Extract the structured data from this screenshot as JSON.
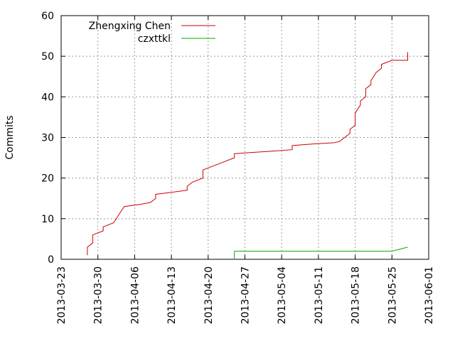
{
  "chart_data": {
    "type": "line",
    "xlabel": "",
    "ylabel": "Commits",
    "xlim": [
      "2013-03-23",
      "2013-06-01"
    ],
    "ylim": [
      0,
      60
    ],
    "x_ticks": [
      "2013-03-23",
      "2013-03-30",
      "2013-04-06",
      "2013-04-13",
      "2013-04-20",
      "2013-04-27",
      "2013-05-04",
      "2013-05-11",
      "2013-05-18",
      "2013-05-25",
      "2013-06-01"
    ],
    "y_ticks": [
      0,
      10,
      20,
      30,
      40,
      50,
      60
    ],
    "grid": true,
    "legend_position": "top-left",
    "series": [
      {
        "name": "Zhengxing Chen",
        "color": "#cc0000",
        "points": [
          [
            "2013-03-28",
            1
          ],
          [
            "2013-03-28",
            3
          ],
          [
            "2013-03-29",
            4
          ],
          [
            "2013-03-29",
            6
          ],
          [
            "2013-03-31",
            7
          ],
          [
            "2013-03-31",
            8
          ],
          [
            "2013-04-02",
            9
          ],
          [
            "2013-04-03",
            11
          ],
          [
            "2013-04-04",
            13
          ],
          [
            "2013-04-07",
            13.5
          ],
          [
            "2013-04-09",
            14
          ],
          [
            "2013-04-10",
            15
          ],
          [
            "2013-04-10",
            16
          ],
          [
            "2013-04-13",
            16.5
          ],
          [
            "2013-04-16",
            17
          ],
          [
            "2013-04-16",
            18
          ],
          [
            "2013-04-17",
            19
          ],
          [
            "2013-04-19",
            20
          ],
          [
            "2013-04-19",
            22
          ],
          [
            "2013-04-22",
            23.5
          ],
          [
            "2013-04-25",
            25
          ],
          [
            "2013-04-25",
            26
          ],
          [
            "2013-04-28",
            26.3
          ],
          [
            "2013-05-02",
            26.6
          ],
          [
            "2013-05-06",
            27
          ],
          [
            "2013-05-06",
            28
          ],
          [
            "2013-05-10",
            28.4
          ],
          [
            "2013-05-14",
            28.7
          ],
          [
            "2013-05-15",
            29
          ],
          [
            "2013-05-16",
            30
          ],
          [
            "2013-05-17",
            31
          ],
          [
            "2013-05-17",
            32
          ],
          [
            "2013-05-18",
            33
          ],
          [
            "2013-05-18",
            36
          ],
          [
            "2013-05-19",
            38
          ],
          [
            "2013-05-19",
            39
          ],
          [
            "2013-05-20",
            40
          ],
          [
            "2013-05-20",
            42
          ],
          [
            "2013-05-21",
            43
          ],
          [
            "2013-05-21",
            44
          ],
          [
            "2013-05-22",
            46
          ],
          [
            "2013-05-23",
            47
          ],
          [
            "2013-05-23",
            48
          ],
          [
            "2013-05-25",
            49
          ],
          [
            "2013-05-28",
            49
          ],
          [
            "2013-05-28",
            51
          ]
        ]
      },
      {
        "name": "czxttkl",
        "color": "#00aa00",
        "points": [
          [
            "2013-04-25",
            0
          ],
          [
            "2013-04-25",
            2
          ],
          [
            "2013-05-25",
            2
          ],
          [
            "2013-05-28",
            3
          ]
        ]
      }
    ]
  }
}
